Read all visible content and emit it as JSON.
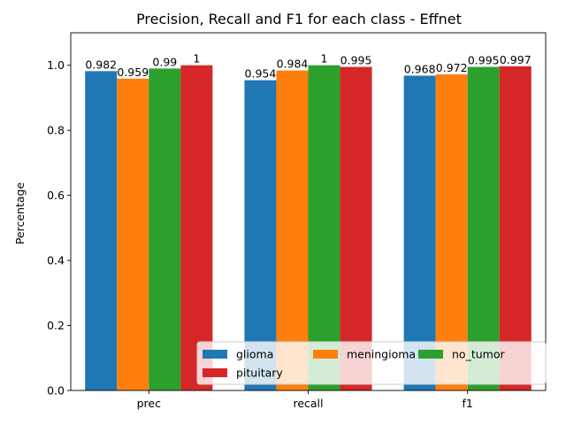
{
  "chart_data": {
    "type": "bar",
    "title": "Precision, Recall and F1 for each class - Effnet",
    "xlabel": "",
    "ylabel": "Percentage",
    "ylim": [
      0,
      1.1
    ],
    "yticks": [
      0.0,
      0.2,
      0.4,
      0.6,
      0.8,
      1.0
    ],
    "ytick_labels": [
      "0.0",
      "0.2",
      "0.4",
      "0.6",
      "0.8",
      "1.0"
    ],
    "categories": [
      "prec",
      "recall",
      "f1"
    ],
    "series": [
      {
        "name": "glioma",
        "color": "#1f77b4",
        "values": [
          0.982,
          0.954,
          0.968
        ],
        "labels": [
          "0.982",
          "0.954",
          "0.968"
        ]
      },
      {
        "name": "meningioma",
        "color": "#ff7f0e",
        "values": [
          0.959,
          0.984,
          0.972
        ],
        "labels": [
          "0.959",
          "0.984",
          "0.972"
        ]
      },
      {
        "name": "no_tumor",
        "color": "#2ca02c",
        "values": [
          0.99,
          1.0,
          0.995
        ],
        "labels": [
          "0.99",
          "1",
          "0.995"
        ]
      },
      {
        "name": "pituitary",
        "color": "#d62728",
        "values": [
          1.0,
          0.995,
          0.997
        ],
        "labels": [
          "1",
          "0.995",
          "0.997"
        ]
      }
    ],
    "grid": false,
    "legend_position": "lower-right"
  }
}
